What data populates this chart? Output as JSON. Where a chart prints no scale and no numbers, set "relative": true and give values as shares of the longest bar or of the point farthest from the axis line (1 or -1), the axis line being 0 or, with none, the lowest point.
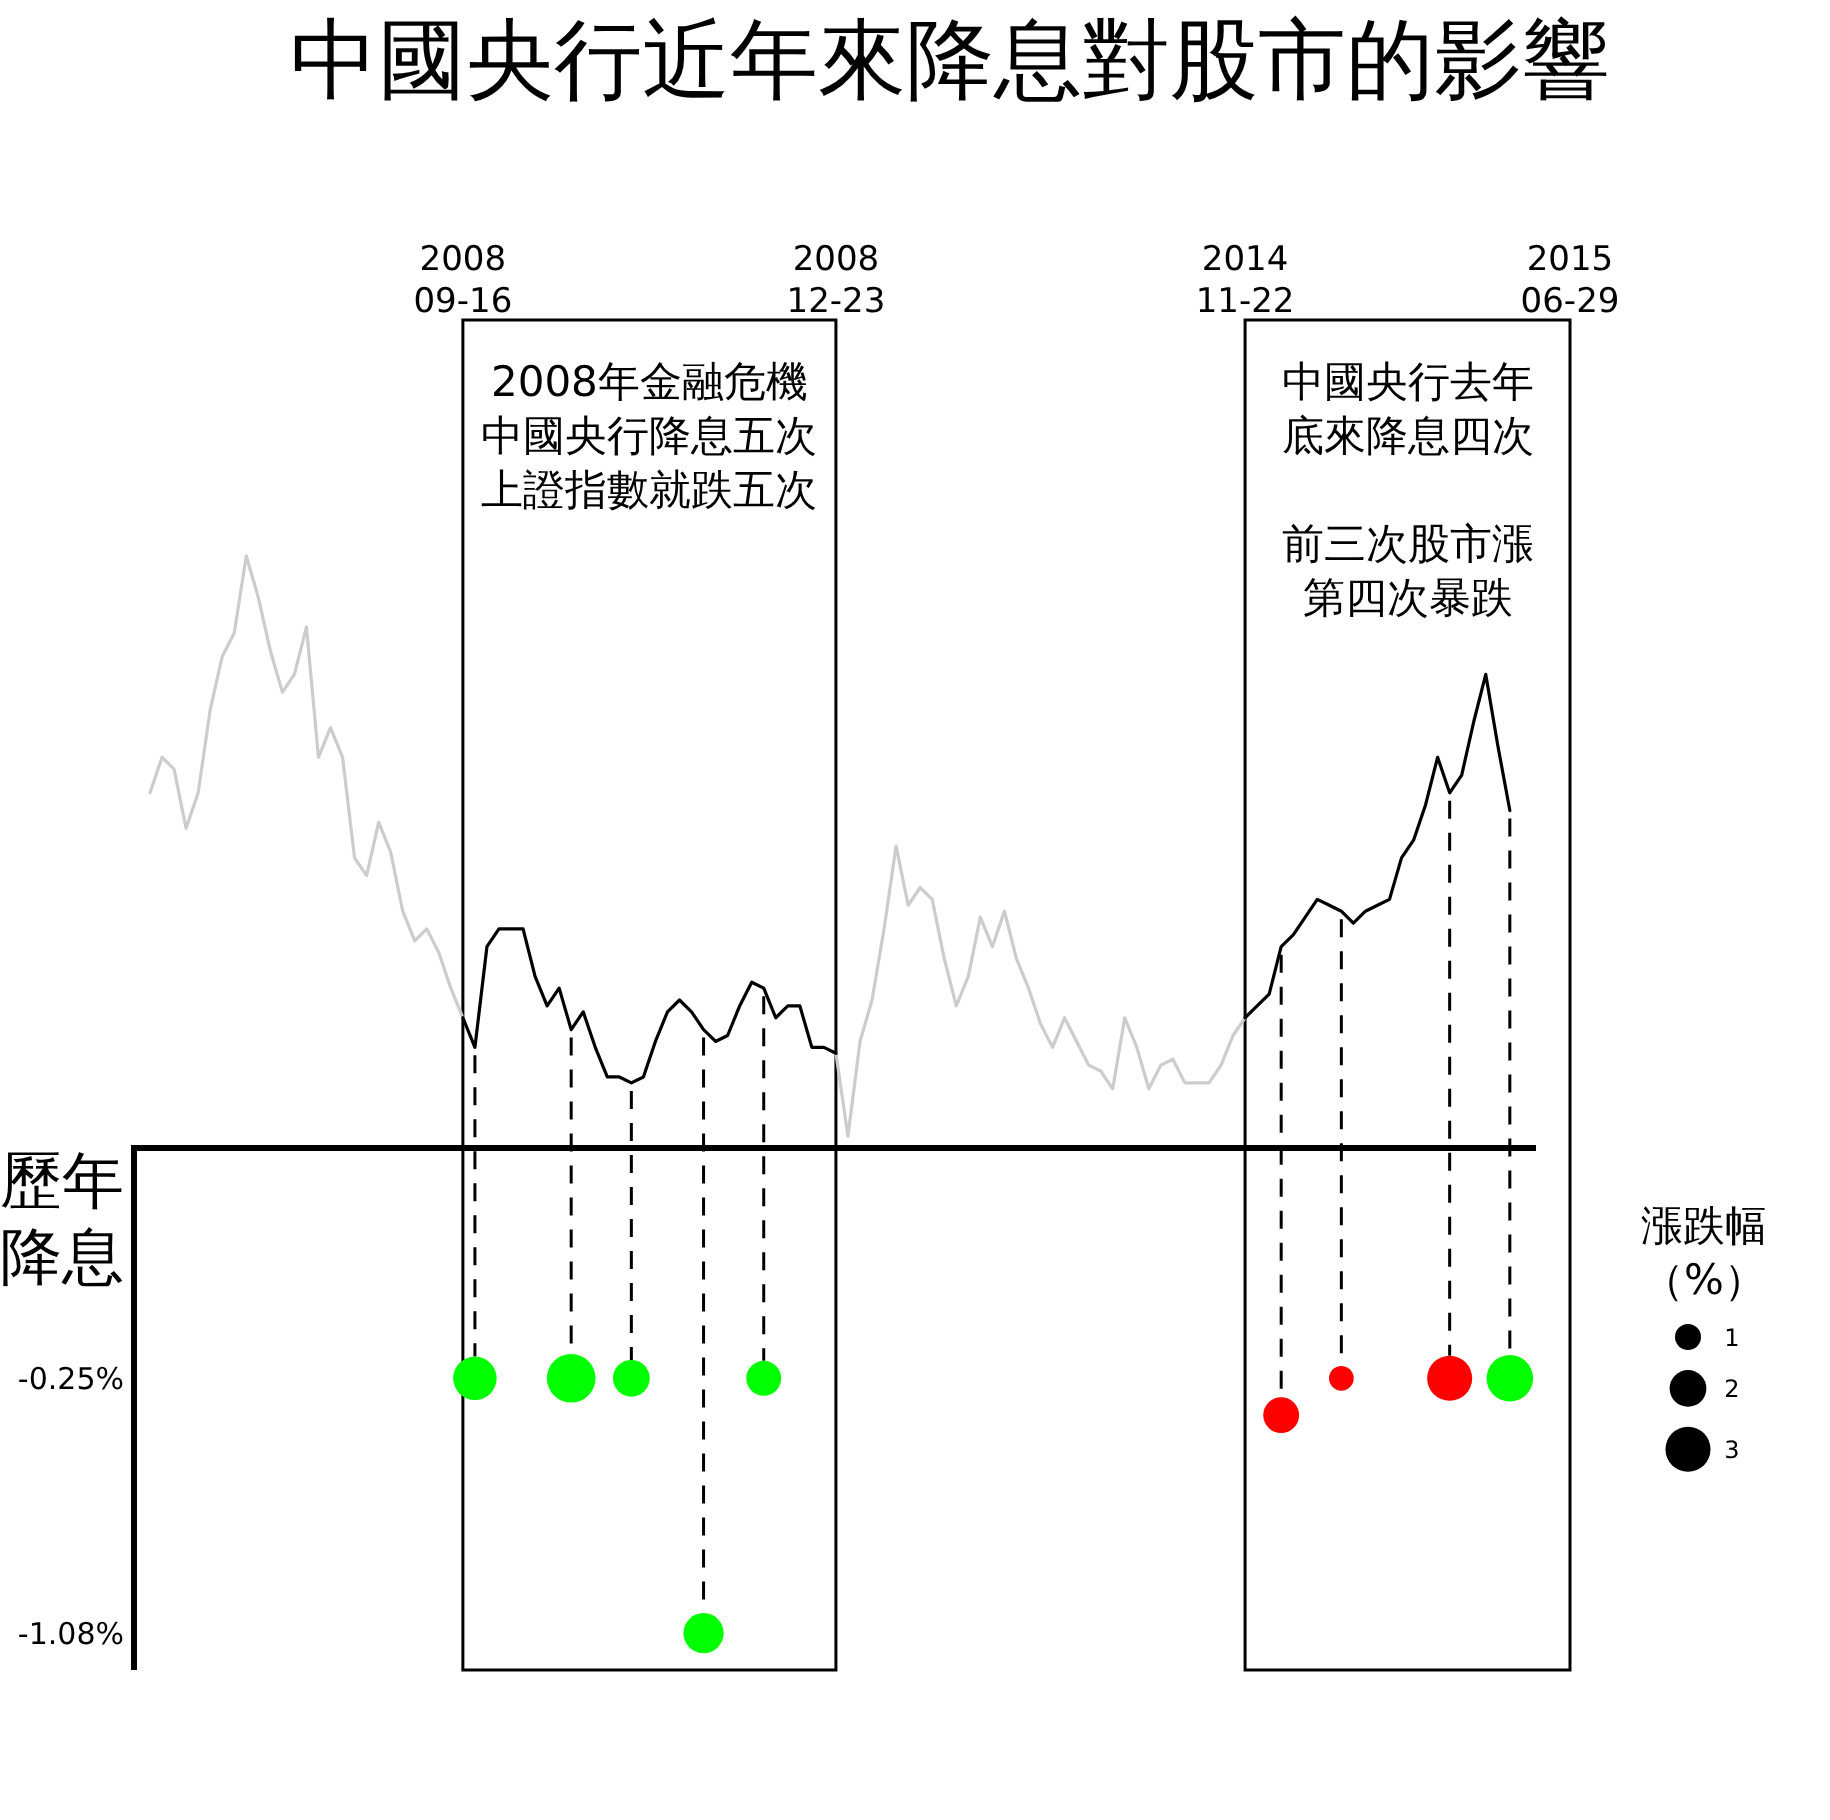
{
  "chart_data": [
    {
      "type": "line",
      "title": "中國央行近年來降息對股市的影響",
      "relative": true,
      "categories": [
        null,
        null,
        null,
        null,
        null,
        null,
        null,
        null,
        null,
        null,
        null,
        null,
        null,
        null,
        null,
        null,
        null,
        null,
        null,
        null,
        null,
        null,
        null,
        null,
        null,
        null,
        "2008\n09-16",
        null,
        null,
        null,
        null,
        null,
        null,
        null,
        null,
        null,
        null,
        null,
        null,
        null,
        null,
        null,
        null,
        null,
        null,
        null,
        null,
        null,
        null,
        null,
        null,
        null,
        null,
        null,
        null,
        null,
        null,
        "2008\n12-23",
        null,
        null,
        null,
        null,
        null,
        null,
        null,
        null,
        null,
        null,
        null,
        null,
        null,
        null,
        null,
        null,
        null,
        null,
        null,
        null,
        null,
        null,
        null,
        null,
        null,
        null,
        null,
        null,
        null,
        null,
        null,
        null,
        null,
        "2014\n11-22",
        null,
        null,
        null,
        null,
        null,
        null,
        null,
        null,
        null,
        null,
        null,
        null,
        null,
        null,
        null,
        null,
        null,
        null,
        null,
        null,
        null,
        null,
        null,
        null,
        null,
        null,
        "2015\n06-29"
      ],
      "series": [
        {
          "color": "#cccccc",
          "values": [
            0.6,
            0.66,
            0.64,
            0.54,
            0.6,
            0.74,
            0.83,
            0.87,
            1.0,
            0.93,
            0.84,
            0.77,
            0.8,
            0.88,
            0.66,
            0.71,
            0.66,
            0.49,
            0.46,
            0.55,
            0.5,
            0.4,
            0.35,
            0.37,
            0.33,
            0.27,
            0.22,
            null,
            null,
            null,
            null,
            null,
            null,
            null,
            null,
            null,
            null,
            null,
            null,
            null,
            null,
            null,
            null,
            null,
            null,
            null,
            null,
            null,
            null,
            null,
            null,
            null,
            null,
            null,
            null,
            null,
            null,
            0.16,
            0.02,
            0.18,
            0.25,
            0.37,
            0.51,
            0.41,
            0.44,
            0.42,
            0.32,
            0.24,
            0.29,
            0.39,
            0.34,
            0.4,
            0.32,
            0.27,
            0.21,
            0.17,
            0.22,
            0.18,
            0.14,
            0.13,
            0.1,
            0.22,
            0.17,
            0.1,
            0.14,
            0.15,
            0.11,
            0.11,
            0.11,
            0.14,
            0.19,
            0.22,
            null,
            null,
            null,
            null,
            null,
            null,
            null,
            null,
            null,
            null,
            null,
            null,
            null,
            null,
            null,
            null,
            null,
            null,
            null,
            null,
            null,
            null,
            null,
            null,
            null,
            null,
            null
          ]
        },
        {
          "color": "#000000",
          "values": [
            null,
            null,
            null,
            null,
            null,
            null,
            null,
            null,
            null,
            null,
            null,
            null,
            null,
            null,
            null,
            null,
            null,
            null,
            null,
            null,
            null,
            null,
            null,
            null,
            null,
            null,
            0.22,
            0.17,
            0.34,
            0.37,
            0.37,
            0.37,
            0.29,
            0.24,
            0.27,
            0.2,
            0.23,
            0.17,
            0.12,
            0.12,
            0.11,
            0.12,
            0.18,
            0.23,
            0.25,
            0.23,
            0.2,
            0.18,
            0.19,
            0.24,
            0.28,
            0.27,
            0.22,
            0.24,
            0.24,
            0.17,
            0.17,
            0.16,
            null,
            null,
            null,
            null,
            null,
            null,
            null,
            null,
            null,
            null,
            null,
            null,
            null,
            null,
            null,
            null,
            null,
            null,
            null,
            null,
            null,
            null,
            null,
            null,
            null,
            null,
            null,
            null,
            null,
            null,
            null,
            null,
            null,
            0.22,
            0.24,
            0.26,
            0.34,
            0.36,
            0.39,
            0.42,
            0.41,
            0.4,
            0.38,
            0.4,
            0.41,
            0.42,
            0.49,
            0.52,
            0.58,
            0.66,
            0.6,
            0.63,
            0.72,
            0.8,
            0.68,
            0.57,
            null,
            null,
            null,
            null,
            null
          ]
        }
      ],
      "bands": [
        {
          "axis": "x",
          "from": "2008\n09-16",
          "to": "2008\n12-23",
          "label": "2008年金融危機中國央行降息五次上證指數就跌五次"
        },
        {
          "axis": "x",
          "from": "2014\n11-22",
          "to": "2015\n06-29",
          "label": "中國央行去年底來降息四次"
        }
      ],
      "annotations": [
        "前三次股市漲第四次暴跌"
      ]
    },
    {
      "type": "bubble",
      "tick_labels": "y",
      "ylabel": "歷年降息",
      "ylim": [
        -1.2,
        0.5
      ],
      "yticks": [
        {
          "value": -0.25,
          "label": "-0.25%"
        },
        {
          "value": -1.08,
          "label": "-1.08%"
        }
      ],
      "legend_title": "漲跌幅（%）",
      "size_legend": [
        1,
        2,
        3
      ],
      "categories": [
        null,
        null,
        null,
        null,
        null,
        null,
        null,
        null,
        null,
        null,
        null,
        null,
        null,
        null,
        null,
        null,
        null,
        null,
        null,
        null,
        null,
        null,
        null,
        null,
        null,
        null,
        null,
        null,
        null,
        null,
        null,
        null,
        null,
        null,
        null,
        null,
        null,
        null,
        null,
        null,
        null,
        null,
        null,
        null,
        null,
        null,
        null,
        null,
        null,
        null,
        null,
        null,
        null,
        null,
        null,
        null,
        null,
        null,
        null,
        null,
        null,
        null,
        null,
        null,
        null,
        null,
        null,
        null,
        null,
        null,
        null,
        null,
        null,
        null,
        null,
        null,
        null,
        null,
        null,
        null,
        null,
        null,
        null,
        null,
        null,
        null,
        null,
        null,
        null,
        null,
        null,
        null,
        null,
        null,
        null,
        null,
        null,
        null,
        null,
        null,
        null,
        null,
        null,
        null,
        null,
        null,
        null,
        null,
        null,
        null,
        null,
        null,
        null,
        null,
        null,
        null,
        null,
        null,
        null
      ],
      "values": [
        null,
        null,
        null,
        null,
        null,
        null,
        null,
        null,
        null,
        null,
        null,
        null,
        null,
        null,
        null,
        null,
        null,
        null,
        null,
        null,
        null,
        null,
        null,
        null,
        null,
        null,
        null,
        -0.25,
        null,
        null,
        null,
        null,
        null,
        null,
        null,
        -0.25,
        null,
        null,
        null,
        null,
        -0.25,
        null,
        null,
        null,
        null,
        null,
        -1.08,
        null,
        null,
        null,
        null,
        -0.25,
        null,
        null,
        null,
        null,
        null,
        null,
        null,
        null,
        null,
        null,
        null,
        null,
        null,
        null,
        null,
        null,
        null,
        null,
        null,
        null,
        null,
        null,
        null,
        null,
        null,
        null,
        null,
        null,
        null,
        null,
        null,
        null,
        null,
        null,
        null,
        null,
        null,
        null,
        null,
        null,
        null,
        null,
        -0.37,
        null,
        null,
        null,
        null,
        -0.25,
        null,
        null,
        null,
        null,
        null,
        null,
        null,
        null,
        -0.25,
        null,
        null,
        null,
        null,
        -0.25,
        null,
        null,
        null,
        null,
        null
      ],
      "sizes": [
        null,
        null,
        null,
        null,
        null,
        null,
        null,
        null,
        null,
        null,
        null,
        null,
        null,
        null,
        null,
        null,
        null,
        null,
        null,
        null,
        null,
        null,
        null,
        null,
        null,
        null,
        null,
        2.8,
        null,
        null,
        null,
        null,
        null,
        null,
        null,
        3.5,
        null,
        null,
        null,
        null,
        2.0,
        null,
        null,
        null,
        null,
        null,
        2.4,
        null,
        null,
        null,
        null,
        1.8,
        null,
        null,
        null,
        null,
        null,
        null,
        null,
        null,
        null,
        null,
        null,
        null,
        null,
        null,
        null,
        null,
        null,
        null,
        null,
        null,
        null,
        null,
        null,
        null,
        null,
        null,
        null,
        null,
        null,
        null,
        null,
        null,
        null,
        null,
        null,
        null,
        null,
        null,
        null,
        null,
        null,
        null,
        1.9,
        null,
        null,
        null,
        null,
        0.9,
        null,
        null,
        null,
        null,
        null,
        null,
        null,
        null,
        3.0,
        null,
        null,
        null,
        null,
        3.2,
        null,
        null,
        null,
        null,
        null
      ],
      "colors": [
        null,
        null,
        null,
        null,
        null,
        null,
        null,
        null,
        null,
        null,
        null,
        null,
        null,
        null,
        null,
        null,
        null,
        null,
        null,
        null,
        null,
        null,
        null,
        null,
        null,
        null,
        null,
        "#00ff00",
        null,
        null,
        null,
        null,
        null,
        null,
        null,
        "#00ff00",
        null,
        null,
        null,
        null,
        "#00ff00",
        null,
        null,
        null,
        null,
        null,
        "#00ff00",
        null,
        null,
        null,
        null,
        "#00ff00",
        null,
        null,
        null,
        null,
        null,
        null,
        null,
        null,
        null,
        null,
        null,
        null,
        null,
        null,
        null,
        null,
        null,
        null,
        null,
        null,
        null,
        null,
        null,
        null,
        null,
        null,
        null,
        null,
        null,
        null,
        null,
        null,
        null,
        null,
        null,
        null,
        null,
        null,
        null,
        null,
        null,
        null,
        "#ff0000",
        null,
        null,
        null,
        null,
        "#ff0000",
        null,
        null,
        null,
        null,
        null,
        null,
        null,
        null,
        "#ff0000",
        null,
        null,
        null,
        null,
        "#00ff00",
        null,
        null,
        null,
        null,
        null
      ]
    }
  ]
}
